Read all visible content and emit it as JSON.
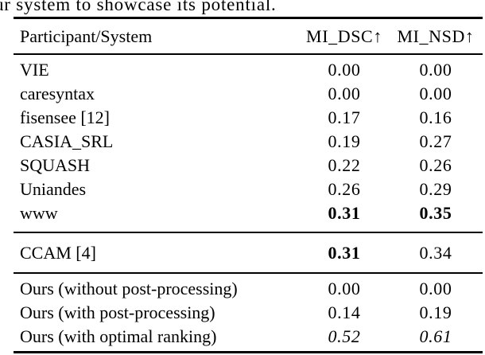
{
  "intro": {
    "text": "ur system to showcase its potential."
  },
  "table": {
    "header": {
      "participant": "Participant/System",
      "dsc": "MI_DSC↑",
      "nsd": "MI_NSD↑"
    },
    "participants": [
      {
        "name": "VIE",
        "dsc": "0.00",
        "nsd": "0.00"
      },
      {
        "name": "caresyntax",
        "dsc": "0.00",
        "nsd": "0.00"
      },
      {
        "name": "fisensee [12]",
        "dsc": "0.17",
        "nsd": "0.16"
      },
      {
        "name": "CASIA_SRL",
        "dsc": "0.19",
        "nsd": "0.27"
      },
      {
        "name": "SQUASH",
        "dsc": "0.22",
        "nsd": "0.26"
      },
      {
        "name": "Uniandes",
        "dsc": "0.26",
        "nsd": "0.29"
      },
      {
        "name": "www",
        "dsc": "0.31",
        "nsd": "0.35"
      }
    ],
    "baseline": {
      "name": "CCAM [4]",
      "dsc": "0.31",
      "nsd": "0.34"
    },
    "ours": [
      {
        "name": "Ours (without post-processing)",
        "dsc": "0.00",
        "nsd": "0.00"
      },
      {
        "name": "Ours (with post-processing)",
        "dsc": "0.14",
        "nsd": "0.19"
      },
      {
        "name": "Ours (with optimal ranking)",
        "dsc": "0.52",
        "nsd": "0.61"
      }
    ]
  }
}
